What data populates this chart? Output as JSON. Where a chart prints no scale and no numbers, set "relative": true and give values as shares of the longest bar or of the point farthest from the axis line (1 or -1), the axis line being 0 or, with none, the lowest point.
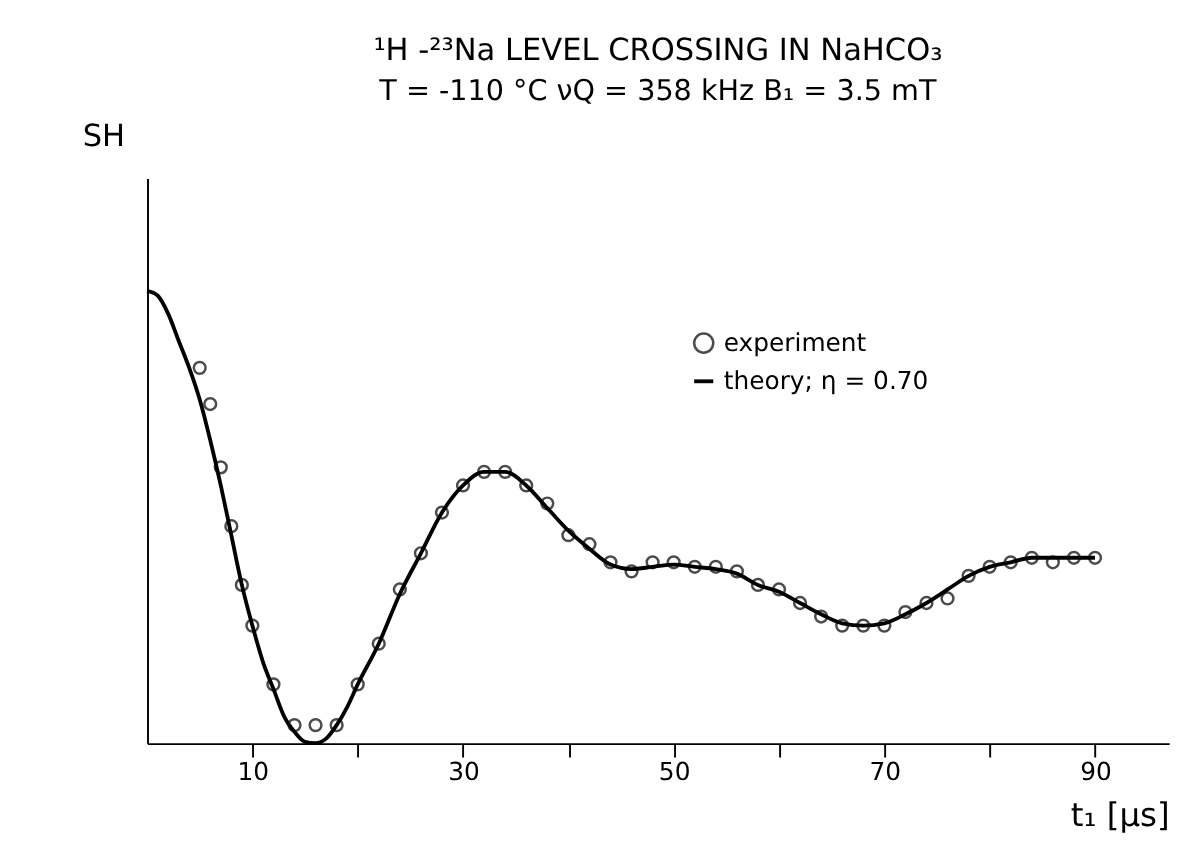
{
  "chart_data": {
    "type": "scatter",
    "title": "¹H -²³Na  LEVEL  CROSSING  IN  NaHCO₃",
    "subtitle": "T = -110 °C   νQ = 358 kHz   B₁ = 3.5 mT",
    "xlabel": "t₁  [μs]",
    "ylabel": "SH",
    "relative": true,
    "xlim": [
      0,
      97
    ],
    "xticks": [
      10,
      {
        "value": 20,
        "label": null
      },
      30,
      {
        "value": 40,
        "label": null
      },
      50,
      {
        "value": 60,
        "label": null
      },
      70,
      {
        "value": 80,
        "label": null
      },
      90
    ],
    "grid": false,
    "legend": "top right",
    "tick_labels": "x",
    "series": [
      {
        "name": "experiment",
        "marker": "circle",
        "color": "#000000",
        "x": [
          5,
          6,
          7,
          8,
          9,
          10,
          12,
          14,
          16,
          18,
          20,
          22,
          24,
          26,
          28,
          30,
          32,
          34,
          36,
          38,
          40,
          42,
          44,
          46,
          48,
          50,
          52,
          54,
          56,
          58,
          60,
          62,
          64,
          66,
          68,
          70,
          72,
          74,
          76,
          78,
          80,
          82,
          84,
          86,
          88,
          90
        ],
        "values": [
          0.83,
          0.75,
          0.61,
          0.48,
          0.35,
          0.26,
          0.13,
          0.04,
          0.04,
          0.04,
          0.13,
          0.22,
          0.34,
          0.42,
          0.51,
          0.57,
          0.6,
          0.6,
          0.57,
          0.53,
          0.46,
          0.44,
          0.4,
          0.38,
          0.4,
          0.4,
          0.39,
          0.39,
          0.38,
          0.35,
          0.34,
          0.31,
          0.28,
          0.26,
          0.26,
          0.26,
          0.29,
          0.31,
          0.32,
          0.37,
          0.39,
          0.4,
          0.41,
          0.4,
          0.41,
          0.41
        ]
      },
      {
        "name": "theory; η = 0.70",
        "type": "line",
        "line_style": "solid",
        "color": "#000000",
        "x": [
          0,
          1,
          2,
          3,
          4,
          5,
          6,
          7,
          8,
          9,
          10,
          11,
          12,
          13,
          14,
          15,
          16,
          17,
          18,
          19,
          20,
          22,
          24,
          26,
          28,
          30,
          32,
          34,
          36,
          38,
          40,
          42,
          44,
          46,
          48,
          50,
          52,
          54,
          56,
          58,
          60,
          62,
          64,
          66,
          68,
          70,
          72,
          74,
          76,
          78,
          80,
          82,
          84,
          86,
          88,
          90
        ],
        "values": [
          1.0,
          0.99,
          0.95,
          0.89,
          0.83,
          0.76,
          0.67,
          0.57,
          0.46,
          0.35,
          0.26,
          0.18,
          0.12,
          0.06,
          0.025,
          0.003,
          0.0,
          0.01,
          0.04,
          0.08,
          0.13,
          0.22,
          0.33,
          0.42,
          0.51,
          0.57,
          0.6,
          0.6,
          0.57,
          0.52,
          0.47,
          0.43,
          0.395,
          0.385,
          0.39,
          0.395,
          0.39,
          0.385,
          0.375,
          0.35,
          0.335,
          0.31,
          0.285,
          0.265,
          0.26,
          0.265,
          0.285,
          0.31,
          0.34,
          0.37,
          0.39,
          0.4,
          0.41,
          0.41,
          0.41,
          0.41
        ]
      }
    ]
  }
}
